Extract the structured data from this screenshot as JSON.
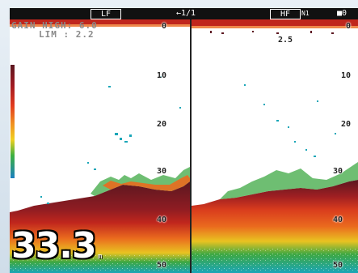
{
  "status_bar": {
    "left_panel_tag": "LF",
    "page_indicator": "←1/1",
    "right_panel_tag": "HF",
    "right_panel_sub": "N1",
    "zoom_indicator": "■0"
  },
  "settings": {
    "gain_line": "GAIN HIGH: 6.0",
    "lim_line": "LIM : 2.2"
  },
  "left_panel": {
    "depth_scale": [
      "0",
      "10",
      "20",
      "30",
      "40",
      "50"
    ]
  },
  "right_panel": {
    "depth_scale": [
      "0",
      "2.5",
      "10",
      "20",
      "30",
      "40",
      "50"
    ]
  },
  "depth_readout": {
    "value": "33.3",
    "unit": "m"
  },
  "colors": {
    "bottom_dark": "#5b1720",
    "bottom_red": "#c0261d",
    "strong_orange": "#ea6a1e",
    "medium_yellow": "#e9c321",
    "weak_green": "#3ea843",
    "weak_cyan": "#1aa6b8",
    "background": "#ffffff"
  }
}
